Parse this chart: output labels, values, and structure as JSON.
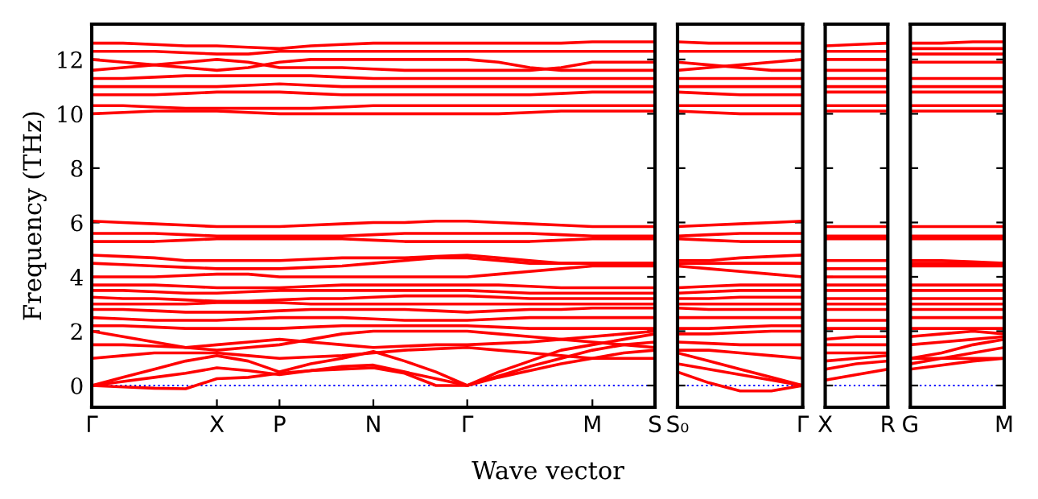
{
  "chart_data": [
    {
      "type": "line",
      "ylabel": "Frequency (THz)",
      "xlabel": "Wave vector",
      "categories": [
        "Γ",
        null,
        null,
        null,
        "X",
        null,
        "P",
        null,
        null,
        "N",
        null,
        null,
        "Γ",
        null,
        null,
        null,
        "M",
        null,
        "S"
      ],
      "ylim": [
        -0.8,
        13.3
      ],
      "yticks": [
        0,
        2,
        4,
        6,
        8,
        10,
        12
      ],
      "ref_lines": [
        {
          "axis": "y",
          "value": 0,
          "color": "#0000ff",
          "line_style": "dotted"
        }
      ],
      "series": [
        {
          "color": "#ff0000",
          "values": [
            0,
            -0.05,
            -0.1,
            -0.12,
            0.25,
            0.3,
            0.45,
            0.55,
            0.6,
            0.65,
            0.45,
            0.0,
            0,
            0.3,
            0.55,
            0.8,
            1.0,
            1.2,
            1.3
          ]
        },
        {
          "color": "#ff0000",
          "values": [
            0,
            0.15,
            0.3,
            0.45,
            0.65,
            0.55,
            0.4,
            0.55,
            0.7,
            0.75,
            0.5,
            0.25,
            0,
            0.35,
            0.7,
            1.0,
            1.3,
            1.5,
            1.6
          ]
        },
        {
          "color": "#ff0000",
          "values": [
            0,
            0.3,
            0.6,
            0.9,
            1.1,
            0.9,
            0.5,
            0.8,
            1.0,
            1.25,
            0.9,
            0.5,
            0,
            0.5,
            0.9,
            1.3,
            1.5,
            1.7,
            1.9
          ]
        },
        {
          "color": "#ff0000",
          "values": [
            1.0,
            1.1,
            1.2,
            1.2,
            1.2,
            1.1,
            1.0,
            1.05,
            1.1,
            1.2,
            1.3,
            1.35,
            1.4,
            1.3,
            1.2,
            1.1,
            1.0,
            1.0,
            1.0
          ]
        },
        {
          "color": "#ff0000",
          "values": [
            1.5,
            1.5,
            1.45,
            1.4,
            1.5,
            1.6,
            1.7,
            1.6,
            1.5,
            1.4,
            1.45,
            1.5,
            1.5,
            1.55,
            1.6,
            1.7,
            1.8,
            1.9,
            2.0
          ]
        },
        {
          "color": "#ff0000",
          "values": [
            2.0,
            1.8,
            1.6,
            1.4,
            1.3,
            1.4,
            1.5,
            1.7,
            1.9,
            2.0,
            2.0,
            2.0,
            2.0,
            1.9,
            1.8,
            1.7,
            1.6,
            1.5,
            1.4
          ]
        },
        {
          "color": "#ff0000",
          "values": [
            2.2,
            2.2,
            2.15,
            2.1,
            2.1,
            2.1,
            2.1,
            2.15,
            2.2,
            2.2,
            2.2,
            2.2,
            2.2,
            2.15,
            2.1,
            2.1,
            2.1,
            2.1,
            2.1
          ]
        },
        {
          "color": "#ff0000",
          "values": [
            2.5,
            2.45,
            2.4,
            2.4,
            2.4,
            2.45,
            2.5,
            2.5,
            2.5,
            2.45,
            2.4,
            2.4,
            2.4,
            2.45,
            2.5,
            2.5,
            2.5,
            2.5,
            2.5
          ]
        },
        {
          "color": "#ff0000",
          "values": [
            2.8,
            2.8,
            2.75,
            2.7,
            2.7,
            2.7,
            2.75,
            2.8,
            2.8,
            2.8,
            2.8,
            2.75,
            2.7,
            2.75,
            2.8,
            2.8,
            2.85,
            2.85,
            2.85
          ]
        },
        {
          "color": "#ff0000",
          "values": [
            3.0,
            3.0,
            3.0,
            3.0,
            3.05,
            3.05,
            3.05,
            3.0,
            3.0,
            3.0,
            3.0,
            3.0,
            3.0,
            3.0,
            3.0,
            3.0,
            3.0,
            3.0,
            3.0
          ]
        },
        {
          "color": "#ff0000",
          "values": [
            3.25,
            3.2,
            3.2,
            3.15,
            3.1,
            3.1,
            3.15,
            3.2,
            3.2,
            3.25,
            3.3,
            3.3,
            3.3,
            3.25,
            3.2,
            3.2,
            3.2,
            3.2,
            3.2
          ]
        },
        {
          "color": "#ff0000",
          "values": [
            3.5,
            3.5,
            3.45,
            3.4,
            3.4,
            3.45,
            3.5,
            3.5,
            3.5,
            3.5,
            3.5,
            3.5,
            3.5,
            3.45,
            3.4,
            3.4,
            3.4,
            3.4,
            3.4
          ]
        },
        {
          "color": "#ff0000",
          "values": [
            3.7,
            3.7,
            3.7,
            3.65,
            3.6,
            3.6,
            3.6,
            3.65,
            3.7,
            3.7,
            3.7,
            3.7,
            3.7,
            3.7,
            3.65,
            3.6,
            3.6,
            3.6,
            3.6
          ]
        },
        {
          "color": "#ff0000",
          "values": [
            4.0,
            4.0,
            4.0,
            4.05,
            4.1,
            4.1,
            4.0,
            4.0,
            4.0,
            4.0,
            4.0,
            4.0,
            4.0,
            4.1,
            4.2,
            4.3,
            4.4,
            4.4,
            4.4
          ]
        },
        {
          "color": "#ff0000",
          "values": [
            4.5,
            4.45,
            4.4,
            4.35,
            4.3,
            4.3,
            4.3,
            4.35,
            4.4,
            4.5,
            4.6,
            4.7,
            4.7,
            4.6,
            4.5,
            4.5,
            4.5,
            4.5,
            4.5
          ]
        },
        {
          "color": "#ff0000",
          "values": [
            4.8,
            4.75,
            4.7,
            4.6,
            4.6,
            4.6,
            4.6,
            4.65,
            4.7,
            4.7,
            4.7,
            4.75,
            4.8,
            4.7,
            4.6,
            4.5,
            4.5,
            4.5,
            4.5
          ]
        },
        {
          "color": "#ff0000",
          "values": [
            5.3,
            5.3,
            5.3,
            5.35,
            5.4,
            5.4,
            5.4,
            5.4,
            5.4,
            5.35,
            5.3,
            5.3,
            5.3,
            5.3,
            5.3,
            5.35,
            5.4,
            5.4,
            5.4
          ]
        },
        {
          "color": "#ff0000",
          "values": [
            5.6,
            5.6,
            5.6,
            5.55,
            5.5,
            5.5,
            5.5,
            5.5,
            5.5,
            5.55,
            5.6,
            5.6,
            5.6,
            5.6,
            5.6,
            5.55,
            5.5,
            5.5,
            5.5
          ]
        },
        {
          "color": "#ff0000",
          "values": [
            6.05,
            6.0,
            5.95,
            5.9,
            5.85,
            5.85,
            5.85,
            5.9,
            5.95,
            6.0,
            6.0,
            6.05,
            6.05,
            6.0,
            5.95,
            5.9,
            5.85,
            5.85,
            5.85
          ]
        },
        {
          "color": "#ff0000",
          "values": [
            10.0,
            10.05,
            10.1,
            10.1,
            10.1,
            10.05,
            10.0,
            10.0,
            10.0,
            10.0,
            10.0,
            10.0,
            10.0,
            10.0,
            10.05,
            10.1,
            10.1,
            10.1,
            10.1
          ]
        },
        {
          "color": "#ff0000",
          "values": [
            10.3,
            10.3,
            10.25,
            10.2,
            10.2,
            10.2,
            10.2,
            10.2,
            10.25,
            10.3,
            10.3,
            10.3,
            10.3,
            10.3,
            10.3,
            10.3,
            10.3,
            10.3,
            10.3
          ]
        },
        {
          "color": "#ff0000",
          "values": [
            10.7,
            10.7,
            10.7,
            10.75,
            10.8,
            10.8,
            10.8,
            10.75,
            10.7,
            10.7,
            10.7,
            10.7,
            10.7,
            10.7,
            10.7,
            10.75,
            10.8,
            10.8,
            10.8
          ]
        },
        {
          "color": "#ff0000",
          "values": [
            11.0,
            11.0,
            11.0,
            11.0,
            11.0,
            11.05,
            11.1,
            11.05,
            11.0,
            11.0,
            11.0,
            11.0,
            11.0,
            11.0,
            11.0,
            11.0,
            11.0,
            11.0,
            11.0
          ]
        },
        {
          "color": "#ff0000",
          "values": [
            11.3,
            11.3,
            11.35,
            11.4,
            11.4,
            11.4,
            11.4,
            11.4,
            11.35,
            11.3,
            11.3,
            11.3,
            11.3,
            11.3,
            11.3,
            11.3,
            11.3,
            11.3,
            11.3
          ]
        },
        {
          "color": "#ff0000",
          "values": [
            11.6,
            11.7,
            11.8,
            11.9,
            12.0,
            11.9,
            11.7,
            11.7,
            11.7,
            11.65,
            11.6,
            11.6,
            11.6,
            11.6,
            11.6,
            11.7,
            11.9,
            11.9,
            11.9
          ]
        },
        {
          "color": "#ff0000",
          "values": [
            12.0,
            11.9,
            11.8,
            11.7,
            11.6,
            11.7,
            11.9,
            12.0,
            12.0,
            12.0,
            12.0,
            12.0,
            12.0,
            11.9,
            11.7,
            11.6,
            11.6,
            11.6,
            11.6
          ]
        },
        {
          "color": "#ff0000",
          "values": [
            12.3,
            12.3,
            12.3,
            12.25,
            12.2,
            12.2,
            12.3,
            12.3,
            12.3,
            12.3,
            12.3,
            12.3,
            12.3,
            12.3,
            12.3,
            12.3,
            12.3,
            12.3,
            12.3
          ]
        },
        {
          "color": "#ff0000",
          "values": [
            12.6,
            12.6,
            12.55,
            12.5,
            12.5,
            12.45,
            12.4,
            12.5,
            12.55,
            12.6,
            12.6,
            12.6,
            12.6,
            12.6,
            12.6,
            12.6,
            12.65,
            12.65,
            12.65
          ]
        }
      ]
    },
    {
      "type": "line",
      "categories": [
        "S₀",
        null,
        null,
        null,
        "Γ"
      ],
      "ylim": [
        -0.8,
        13.3
      ],
      "yticks": [
        0,
        2,
        4,
        6,
        8,
        10,
        12
      ],
      "tick_labels": "x",
      "ref_lines": [
        {
          "axis": "y",
          "value": 0,
          "color": "#0000ff",
          "line_style": "dotted"
        }
      ],
      "series": [
        {
          "color": "#ff0000",
          "values": [
            0.5,
            0.1,
            -0.2,
            -0.2,
            0
          ]
        },
        {
          "color": "#ff0000",
          "values": [
            0.8,
            0.6,
            0.4,
            0.2,
            0
          ]
        },
        {
          "color": "#ff0000",
          "values": [
            1.2,
            0.9,
            0.6,
            0.3,
            0
          ]
        },
        {
          "color": "#ff0000",
          "values": [
            1.3,
            1.3,
            1.2,
            1.1,
            1.0
          ]
        },
        {
          "color": "#ff0000",
          "values": [
            1.6,
            1.55,
            1.5,
            1.5,
            1.5
          ]
        },
        {
          "color": "#ff0000",
          "values": [
            1.9,
            1.9,
            1.95,
            2.0,
            2.0
          ]
        },
        {
          "color": "#ff0000",
          "values": [
            2.1,
            2.1,
            2.15,
            2.2,
            2.2
          ]
        },
        {
          "color": "#ff0000",
          "values": [
            2.5,
            2.5,
            2.5,
            2.5,
            2.5
          ]
        },
        {
          "color": "#ff0000",
          "values": [
            2.85,
            2.8,
            2.8,
            2.8,
            2.8
          ]
        },
        {
          "color": "#ff0000",
          "values": [
            3.0,
            3.0,
            3.0,
            3.0,
            3.0
          ]
        },
        {
          "color": "#ff0000",
          "values": [
            3.2,
            3.2,
            3.25,
            3.25,
            3.25
          ]
        },
        {
          "color": "#ff0000",
          "values": [
            3.4,
            3.45,
            3.5,
            3.5,
            3.5
          ]
        },
        {
          "color": "#ff0000",
          "values": [
            3.6,
            3.65,
            3.7,
            3.7,
            3.7
          ]
        },
        {
          "color": "#ff0000",
          "values": [
            4.4,
            4.3,
            4.2,
            4.1,
            4.0
          ]
        },
        {
          "color": "#ff0000",
          "values": [
            4.5,
            4.5,
            4.5,
            4.5,
            4.5
          ]
        },
        {
          "color": "#ff0000",
          "values": [
            4.6,
            4.6,
            4.7,
            4.75,
            4.8
          ]
        },
        {
          "color": "#ff0000",
          "values": [
            5.4,
            5.35,
            5.3,
            5.3,
            5.3
          ]
        },
        {
          "color": "#ff0000",
          "values": [
            5.5,
            5.55,
            5.6,
            5.6,
            5.6
          ]
        },
        {
          "color": "#ff0000",
          "values": [
            5.85,
            5.9,
            5.95,
            6.0,
            6.05
          ]
        },
        {
          "color": "#ff0000",
          "values": [
            10.1,
            10.05,
            10.0,
            10.0,
            10.0
          ]
        },
        {
          "color": "#ff0000",
          "values": [
            10.3,
            10.3,
            10.3,
            10.3,
            10.3
          ]
        },
        {
          "color": "#ff0000",
          "values": [
            10.8,
            10.75,
            10.7,
            10.7,
            10.7
          ]
        },
        {
          "color": "#ff0000",
          "values": [
            11.0,
            11.0,
            11.0,
            11.0,
            11.0
          ]
        },
        {
          "color": "#ff0000",
          "values": [
            11.3,
            11.3,
            11.3,
            11.3,
            11.3
          ]
        },
        {
          "color": "#ff0000",
          "values": [
            11.9,
            11.8,
            11.7,
            11.6,
            11.6
          ]
        },
        {
          "color": "#ff0000",
          "values": [
            11.6,
            11.7,
            11.8,
            11.9,
            12.0
          ]
        },
        {
          "color": "#ff0000",
          "values": [
            12.3,
            12.3,
            12.3,
            12.3,
            12.3
          ]
        },
        {
          "color": "#ff0000",
          "values": [
            12.65,
            12.6,
            12.6,
            12.6,
            12.6
          ]
        }
      ]
    },
    {
      "type": "line",
      "categories": [
        "X",
        null,
        "R"
      ],
      "ylim": [
        -0.8,
        13.3
      ],
      "yticks": [
        0,
        2,
        4,
        6,
        8,
        10,
        12
      ],
      "tick_labels": "x",
      "ref_lines": [
        {
          "axis": "y",
          "value": 0,
          "color": "#0000ff",
          "line_style": "dotted"
        }
      ],
      "series": [
        {
          "color": "#ff0000",
          "values": [
            0.2,
            0.4,
            0.6
          ]
        },
        {
          "color": "#ff0000",
          "values": [
            0.6,
            0.8,
            0.9
          ]
        },
        {
          "color": "#ff0000",
          "values": [
            0.9,
            1.0,
            1.1
          ]
        },
        {
          "color": "#ff0000",
          "values": [
            1.2,
            1.2,
            1.2
          ]
        },
        {
          "color": "#ff0000",
          "values": [
            1.5,
            1.5,
            1.5
          ]
        },
        {
          "color": "#ff0000",
          "values": [
            1.7,
            1.8,
            1.8
          ]
        },
        {
          "color": "#ff0000",
          "values": [
            2.1,
            2.1,
            2.1
          ]
        },
        {
          "color": "#ff0000",
          "values": [
            2.4,
            2.4,
            2.4
          ]
        },
        {
          "color": "#ff0000",
          "values": [
            2.8,
            2.8,
            2.8
          ]
        },
        {
          "color": "#ff0000",
          "values": [
            3.0,
            3.0,
            3.0
          ]
        },
        {
          "color": "#ff0000",
          "values": [
            3.2,
            3.2,
            3.2
          ]
        },
        {
          "color": "#ff0000",
          "values": [
            3.5,
            3.5,
            3.5
          ]
        },
        {
          "color": "#ff0000",
          "values": [
            3.7,
            3.7,
            3.7
          ]
        },
        {
          "color": "#ff0000",
          "values": [
            4.0,
            4.0,
            4.0
          ]
        },
        {
          "color": "#ff0000",
          "values": [
            4.3,
            4.3,
            4.3
          ]
        },
        {
          "color": "#ff0000",
          "values": [
            4.6,
            4.6,
            4.6
          ]
        },
        {
          "color": "#ff0000",
          "values": [
            5.4,
            5.4,
            5.4
          ]
        },
        {
          "color": "#ff0000",
          "values": [
            5.5,
            5.5,
            5.5
          ]
        },
        {
          "color": "#ff0000",
          "values": [
            5.85,
            5.85,
            5.85
          ]
        },
        {
          "color": "#ff0000",
          "values": [
            10.1,
            10.1,
            10.1
          ]
        },
        {
          "color": "#ff0000",
          "values": [
            10.3,
            10.3,
            10.3
          ]
        },
        {
          "color": "#ff0000",
          "values": [
            10.8,
            10.8,
            10.8
          ]
        },
        {
          "color": "#ff0000",
          "values": [
            11.0,
            11.0,
            11.0
          ]
        },
        {
          "color": "#ff0000",
          "values": [
            11.3,
            11.3,
            11.3
          ]
        },
        {
          "color": "#ff0000",
          "values": [
            11.6,
            11.6,
            11.6
          ]
        },
        {
          "color": "#ff0000",
          "values": [
            12.0,
            12.0,
            12.0
          ]
        },
        {
          "color": "#ff0000",
          "values": [
            12.3,
            12.3,
            12.3
          ]
        },
        {
          "color": "#ff0000",
          "values": [
            12.5,
            12.55,
            12.6
          ]
        }
      ]
    },
    {
      "type": "line",
      "categories": [
        "G",
        null,
        null,
        "M"
      ],
      "ylim": [
        -0.8,
        13.3
      ],
      "yticks": [
        0,
        2,
        4,
        6,
        8,
        10,
        12
      ],
      "tick_labels": "x",
      "ref_lines": [
        {
          "axis": "y",
          "value": 0,
          "color": "#0000ff",
          "line_style": "dotted"
        }
      ],
      "series": [
        {
          "color": "#ff0000",
          "values": [
            0.6,
            0.75,
            0.9,
            1.0
          ]
        },
        {
          "color": "#ff0000",
          "values": [
            0.8,
            1.0,
            1.2,
            1.4
          ]
        },
        {
          "color": "#ff0000",
          "values": [
            1.0,
            1.2,
            1.5,
            1.7
          ]
        },
        {
          "color": "#ff0000",
          "values": [
            1.0,
            1.0,
            1.0,
            1.0
          ]
        },
        {
          "color": "#ff0000",
          "values": [
            1.5,
            1.6,
            1.7,
            1.8
          ]
        },
        {
          "color": "#ff0000",
          "values": [
            1.8,
            1.9,
            2.0,
            1.9
          ]
        },
        {
          "color": "#ff0000",
          "values": [
            2.1,
            2.1,
            2.1,
            2.1
          ]
        },
        {
          "color": "#ff0000",
          "values": [
            2.5,
            2.5,
            2.5,
            2.5
          ]
        },
        {
          "color": "#ff0000",
          "values": [
            2.8,
            2.8,
            2.8,
            2.8
          ]
        },
        {
          "color": "#ff0000",
          "values": [
            3.0,
            3.0,
            3.0,
            3.0
          ]
        },
        {
          "color": "#ff0000",
          "values": [
            3.2,
            3.2,
            3.2,
            3.2
          ]
        },
        {
          "color": "#ff0000",
          "values": [
            3.5,
            3.5,
            3.5,
            3.5
          ]
        },
        {
          "color": "#ff0000",
          "values": [
            3.7,
            3.7,
            3.7,
            3.7
          ]
        },
        {
          "color": "#ff0000",
          "values": [
            4.4,
            4.4,
            4.4,
            4.4
          ]
        },
        {
          "color": "#ff0000",
          "values": [
            4.5,
            4.5,
            4.5,
            4.5
          ]
        },
        {
          "color": "#ff0000",
          "values": [
            4.6,
            4.6,
            4.55,
            4.5
          ]
        },
        {
          "color": "#ff0000",
          "values": [
            5.4,
            5.4,
            5.4,
            5.4
          ]
        },
        {
          "color": "#ff0000",
          "values": [
            5.5,
            5.5,
            5.5,
            5.5
          ]
        },
        {
          "color": "#ff0000",
          "values": [
            5.85,
            5.85,
            5.85,
            5.85
          ]
        },
        {
          "color": "#ff0000",
          "values": [
            10.1,
            10.1,
            10.1,
            10.1
          ]
        },
        {
          "color": "#ff0000",
          "values": [
            10.3,
            10.3,
            10.3,
            10.3
          ]
        },
        {
          "color": "#ff0000",
          "values": [
            10.8,
            10.8,
            10.8,
            10.8
          ]
        },
        {
          "color": "#ff0000",
          "values": [
            11.0,
            11.0,
            11.0,
            11.0
          ]
        },
        {
          "color": "#ff0000",
          "values": [
            11.3,
            11.3,
            11.3,
            11.3
          ]
        },
        {
          "color": "#ff0000",
          "values": [
            11.9,
            11.9,
            11.9,
            11.9
          ]
        },
        {
          "color": "#ff0000",
          "values": [
            12.2,
            12.2,
            12.2,
            12.2
          ]
        },
        {
          "color": "#ff0000",
          "values": [
            12.4,
            12.4,
            12.4,
            12.4
          ]
        },
        {
          "color": "#ff0000",
          "values": [
            12.6,
            12.6,
            12.65,
            12.65
          ]
        }
      ]
    }
  ]
}
